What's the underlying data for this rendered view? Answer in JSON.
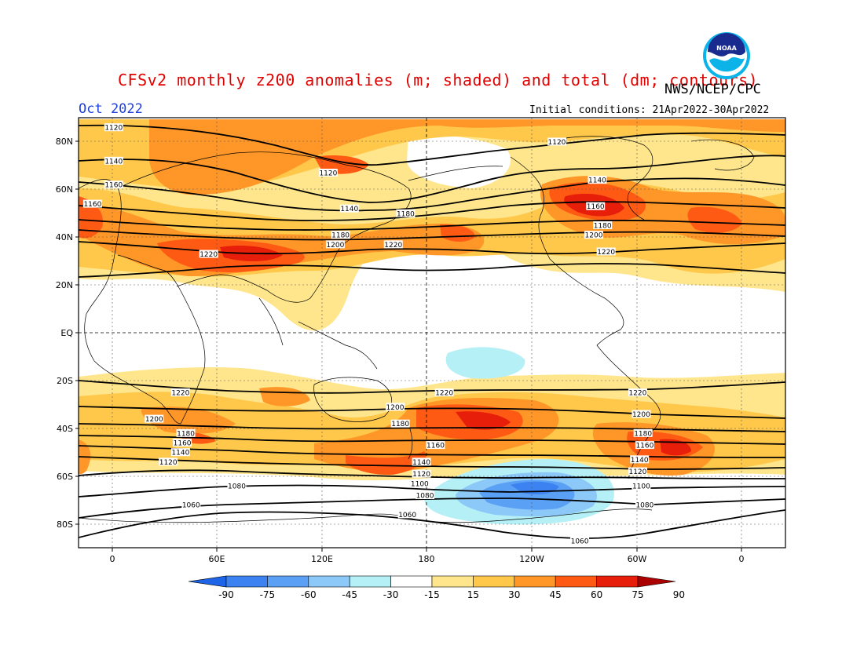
{
  "header": {
    "title": "CFSv2 monthly z200 anomalies (m; shaded) and total (dm; contours)",
    "agency": "NWS/NCEP/CPC",
    "month": "Oct 2022",
    "initial_conditions": "Initial conditions: 21Apr2022-30Apr2022",
    "logo_text": "NOAA"
  },
  "map": {
    "variable": "z200",
    "lat_labels": [
      "80N",
      "60N",
      "40N",
      "20N",
      "EQ",
      "20S",
      "40S",
      "60S",
      "80S"
    ],
    "lon_labels": [
      "0",
      "60E",
      "120E",
      "180",
      "120W",
      "60W",
      "0"
    ],
    "contour_labels": [
      {
        "text": "1120",
        "lon": 0,
        "lat": 86
      },
      {
        "text": "1140",
        "lon": 0,
        "lat": 72
      },
      {
        "text": "1160",
        "lon": 0,
        "lat": 62
      },
      {
        "text": "1160",
        "lon": -12,
        "lat": 54
      },
      {
        "text": "1120",
        "lon": 122,
        "lat": 67
      },
      {
        "text": "1140",
        "lon": 134,
        "lat": 52
      },
      {
        "text": "1180",
        "lon": 166,
        "lat": 50
      },
      {
        "text": "1180",
        "lon": 129,
        "lat": 41
      },
      {
        "text": "1200",
        "lon": 126,
        "lat": 37
      },
      {
        "text": "1220",
        "lon": 159,
        "lat": 37
      },
      {
        "text": "1220",
        "lon": 54,
        "lat": 33
      },
      {
        "text": "1120",
        "lon": -108,
        "lat": 80
      },
      {
        "text": "1140",
        "lon": -85,
        "lat": 64
      },
      {
        "text": "1160",
        "lon": -86,
        "lat": 53
      },
      {
        "text": "1180",
        "lon": -82,
        "lat": 45
      },
      {
        "text": "1200",
        "lon": -87,
        "lat": 41
      },
      {
        "text": "1220",
        "lon": -80,
        "lat": 34
      },
      {
        "text": "1220",
        "lon": 38,
        "lat": -25
      },
      {
        "text": "1220",
        "lon": -172,
        "lat": -25
      },
      {
        "text": "1220",
        "lon": -62,
        "lat": -25
      },
      {
        "text": "1200",
        "lon": 23,
        "lat": -36
      },
      {
        "text": "1200",
        "lon": 160,
        "lat": -31
      },
      {
        "text": "1200",
        "lon": -60,
        "lat": -34
      },
      {
        "text": "1180",
        "lon": 41,
        "lat": -42
      },
      {
        "text": "1180",
        "lon": 163,
        "lat": -38
      },
      {
        "text": "1180",
        "lon": -59,
        "lat": -42
      },
      {
        "text": "1160",
        "lon": 39,
        "lat": -46
      },
      {
        "text": "1160",
        "lon": -177,
        "lat": -47
      },
      {
        "text": "1160",
        "lon": -58,
        "lat": -47
      },
      {
        "text": "1140",
        "lon": 38,
        "lat": -50
      },
      {
        "text": "1140",
        "lon": -185,
        "lat": -54
      },
      {
        "text": "1140",
        "lon": -61,
        "lat": -53
      },
      {
        "text": "1120",
        "lon": 31,
        "lat": -54
      },
      {
        "text": "1120",
        "lon": -185,
        "lat": -59
      },
      {
        "text": "1120",
        "lon": -62,
        "lat": -58
      },
      {
        "text": "1100",
        "lon": -186,
        "lat": -63
      },
      {
        "text": "1100",
        "lon": -60,
        "lat": -64
      },
      {
        "text": "1080",
        "lon": 70,
        "lat": -64
      },
      {
        "text": "1080",
        "lon": -183,
        "lat": -68
      },
      {
        "text": "1080",
        "lon": -58,
        "lat": -72
      },
      {
        "text": "1060",
        "lon": 44,
        "lat": -72
      },
      {
        "text": "1060",
        "lon": 167,
        "lat": -76
      },
      {
        "text": "1060",
        "lon": -95,
        "lat": -87
      }
    ]
  },
  "colorbar": {
    "labels": [
      "-90",
      "-75",
      "-60",
      "-45",
      "-30",
      "-15",
      "15",
      "30",
      "45",
      "60",
      "75",
      "90"
    ],
    "colors": [
      "#1e64e6",
      "#3c82f0",
      "#5aa0f5",
      "#8cc8f8",
      "#b4f0f5",
      "#ffffff",
      "#ffe68c",
      "#ffc84b",
      "#ff9628",
      "#ff5a14",
      "#e61e0a",
      "#aa0000"
    ]
  }
}
